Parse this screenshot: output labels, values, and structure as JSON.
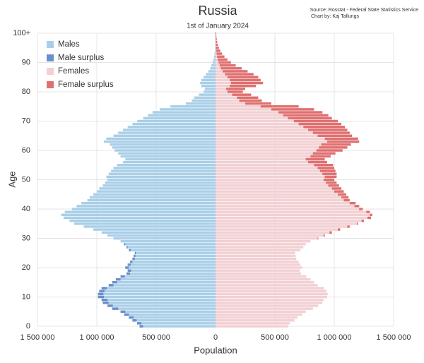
{
  "chart_data": {
    "type": "pyramid",
    "title": "Russia",
    "subtitle": "1st of January 2024",
    "source": "Source: Rosstat - Federal State Statistics Service",
    "credit": "Chart by: Kaj Tallungs",
    "xlabel": "Population",
    "ylabel": "Age",
    "grid": true,
    "legend": "top-left",
    "xlim": [
      -1500000,
      1500000
    ],
    "xticks": [
      {
        "value": -1500000,
        "label": "1 500 000"
      },
      {
        "value": -1000000,
        "label": "1 000 000"
      },
      {
        "value": -500000,
        "label": "500 000"
      },
      0,
      {
        "value": 500000,
        "label": "500 000"
      },
      {
        "value": 1000000,
        "label": "1 000 000"
      },
      {
        "value": 1500000,
        "label": "1 500 000"
      }
    ],
    "ylim": [
      0,
      100
    ],
    "yticks": [
      0,
      10,
      20,
      30,
      40,
      50,
      60,
      70,
      80,
      90,
      {
        "value": 100,
        "label": "100+"
      }
    ],
    "y": [
      0,
      1,
      2,
      3,
      4,
      5,
      6,
      7,
      8,
      9,
      10,
      11,
      12,
      13,
      14,
      15,
      16,
      17,
      18,
      19,
      20,
      21,
      22,
      23,
      24,
      25,
      26,
      27,
      28,
      29,
      30,
      31,
      32,
      33,
      34,
      35,
      36,
      37,
      38,
      39,
      40,
      41,
      42,
      43,
      44,
      45,
      46,
      47,
      48,
      49,
      50,
      51,
      52,
      53,
      54,
      55,
      56,
      57,
      58,
      59,
      60,
      61,
      62,
      63,
      64,
      65,
      66,
      67,
      68,
      69,
      70,
      71,
      72,
      73,
      74,
      75,
      76,
      77,
      78,
      79,
      80,
      81,
      82,
      83,
      84,
      85,
      86,
      87,
      88,
      89,
      90,
      91,
      92,
      93,
      94,
      95,
      96,
      97,
      98,
      99,
      100
    ],
    "series": [
      {
        "name": "Males",
        "color": "#a9cfe8",
        "side": "left",
        "values": [
          640000,
          660000,
          700000,
          730000,
          770000,
          800000,
          870000,
          910000,
          950000,
          960000,
          990000,
          990000,
          980000,
          960000,
          900000,
          870000,
          840000,
          800000,
          750000,
          740000,
          760000,
          740000,
          720000,
          700000,
          690000,
          680000,
          730000,
          750000,
          770000,
          800000,
          860000,
          910000,
          960000,
          1030000,
          1110000,
          1190000,
          1230000,
          1280000,
          1300000,
          1270000,
          1210000,
          1170000,
          1130000,
          1080000,
          1060000,
          1030000,
          1000000,
          980000,
          950000,
          930000,
          910000,
          920000,
          900000,
          880000,
          860000,
          830000,
          780000,
          760000,
          800000,
          820000,
          850000,
          870000,
          890000,
          940000,
          920000,
          860000,
          820000,
          780000,
          740000,
          700000,
          660000,
          610000,
          570000,
          530000,
          470000,
          380000,
          250000,
          200000,
          180000,
          140000,
          100000,
          90000,
          120000,
          130000,
          120000,
          100000,
          80000,
          60000,
          45000,
          35000,
          25000,
          18000,
          13000,
          9000,
          6000,
          4000,
          3000,
          2000,
          1500,
          1000,
          1000
        ]
      },
      {
        "name": "Male surplus",
        "color": "#6b8fcb"
      },
      {
        "name": "Females",
        "color": "#f2d0d3",
        "side": "right",
        "values": [
          610000,
          625000,
          665000,
          690000,
          730000,
          760000,
          820000,
          865000,
          900000,
          910000,
          940000,
          945000,
          935000,
          915000,
          860000,
          830000,
          800000,
          765000,
          720000,
          710000,
          730000,
          715000,
          700000,
          680000,
          675000,
          670000,
          715000,
          740000,
          760000,
          800000,
          865000,
          920000,
          980000,
          1050000,
          1130000,
          1200000,
          1250000,
          1310000,
          1320000,
          1300000,
          1240000,
          1210000,
          1180000,
          1130000,
          1120000,
          1100000,
          1080000,
          1060000,
          1040000,
          1020000,
          1000000,
          1020000,
          1020000,
          1010000,
          1000000,
          990000,
          940000,
          920000,
          970000,
          1010000,
          1070000,
          1110000,
          1140000,
          1210000,
          1200000,
          1150000,
          1130000,
          1110000,
          1090000,
          1060000,
          1030000,
          980000,
          950000,
          900000,
          830000,
          700000,
          470000,
          390000,
          360000,
          300000,
          230000,
          250000,
          340000,
          400000,
          380000,
          360000,
          320000,
          270000,
          220000,
          170000,
          130000,
          100000,
          75000,
          55000,
          40000,
          28000,
          20000,
          14000,
          10000,
          7000,
          6000
        ]
      },
      {
        "name": "Female surplus",
        "color": "#e07070"
      }
    ]
  }
}
